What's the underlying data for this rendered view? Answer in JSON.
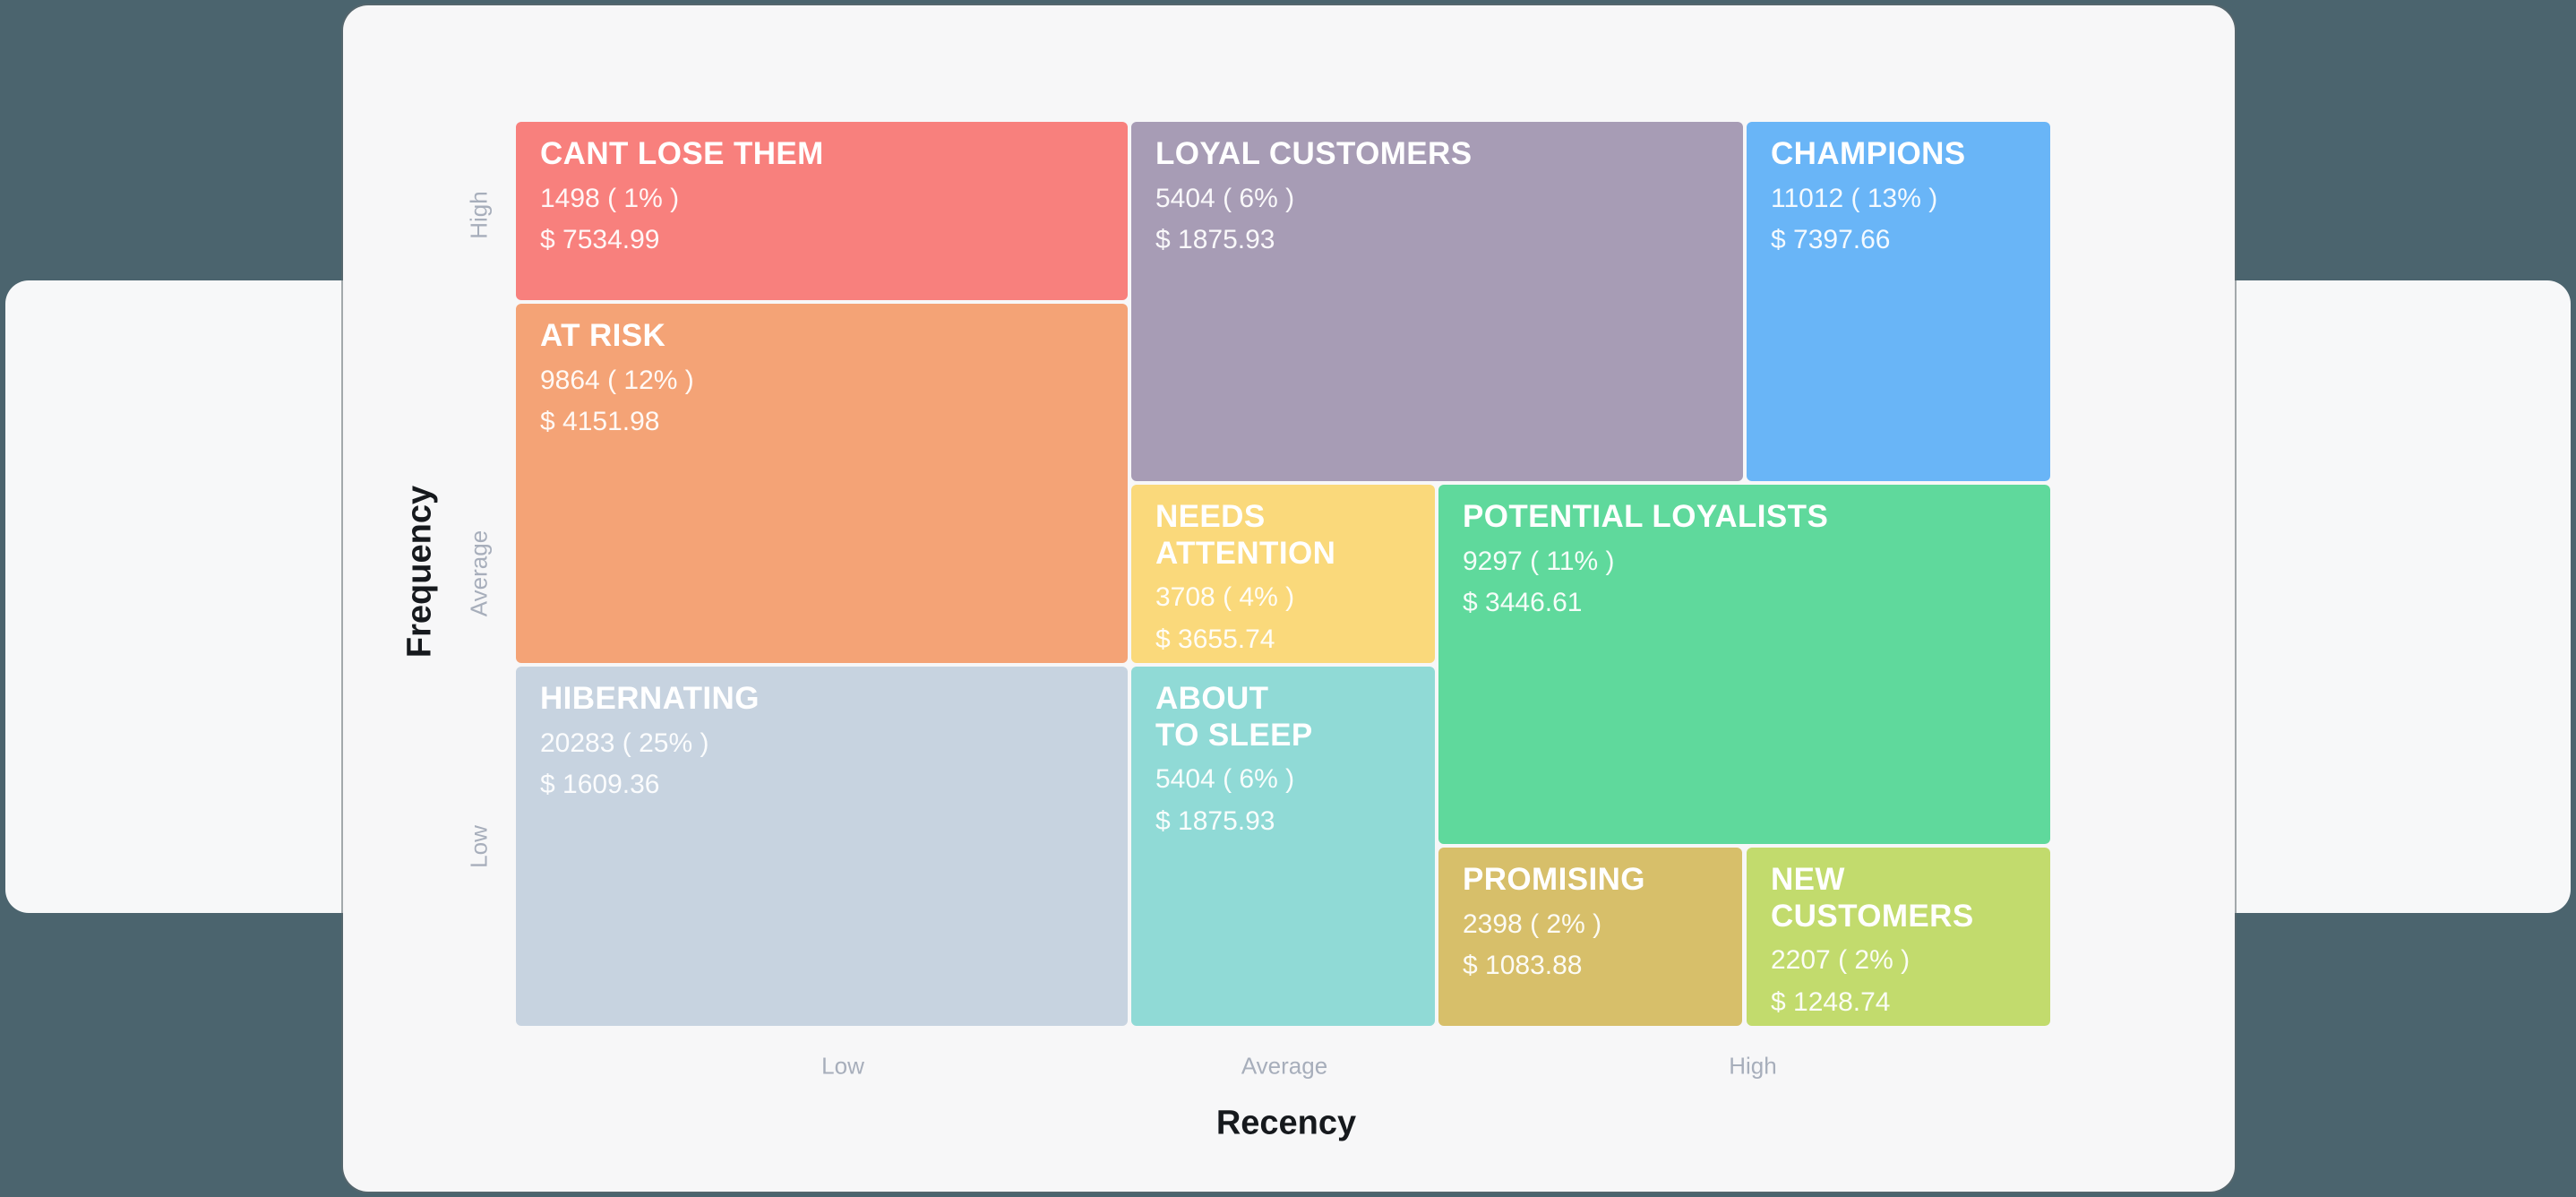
{
  "theme": {
    "page_bg": "#4b646e",
    "card_bg": "#f7f7f8",
    "axis_title_color": "#16191d",
    "tick_label_color": "#a7aebb",
    "segment_text_color": "#ffffff"
  },
  "chart_data": {
    "type": "treemap",
    "subtype": "rfm-segment-grid",
    "xlabel": "Recency",
    "ylabel": "Frequency",
    "x_ticks": [
      "Low",
      "Average",
      "High"
    ],
    "y_ticks": [
      "High",
      "Average",
      "Low"
    ],
    "grid": {
      "column_splits_pct": [
        0,
        40,
        60,
        80,
        100
      ],
      "row_splits_pct": [
        0,
        20,
        40,
        60,
        80,
        100
      ]
    },
    "segments": [
      {
        "name": "CANT LOSE THEM",
        "display_name": "CANT LOSE THEM",
        "customers": 1498,
        "percent": 1,
        "monetary": 7534.99,
        "count_label": "1498 ( 1% )",
        "monetary_label": "$ 7534.99",
        "color": "#f8807d",
        "col_span_pct": [
          0,
          40
        ],
        "row_span_pct": [
          0,
          20
        ]
      },
      {
        "name": "LOYAL CUSTOMERS",
        "display_name": "LOYAL CUSTOMERS",
        "customers": 5404,
        "percent": 6,
        "monetary": 1875.93,
        "count_label": "5404 ( 6% )",
        "monetary_label": "$ 1875.93",
        "color": "#a79cb5",
        "col_span_pct": [
          40,
          80
        ],
        "row_span_pct": [
          0,
          40
        ]
      },
      {
        "name": "CHAMPIONS",
        "display_name": "CHAMPIONS",
        "customers": 11012,
        "percent": 13,
        "monetary": 7397.66,
        "count_label": "11012 ( 13% )",
        "monetary_label": "$ 7397.66",
        "color": "#69b5f7",
        "col_span_pct": [
          80,
          100
        ],
        "row_span_pct": [
          0,
          40
        ]
      },
      {
        "name": "AT RISK",
        "display_name": "AT RISK",
        "customers": 9864,
        "percent": 12,
        "monetary": 4151.98,
        "count_label": "9864 ( 12% )",
        "monetary_label": "$ 4151.98",
        "color": "#f4a376",
        "col_span_pct": [
          0,
          40
        ],
        "row_span_pct": [
          20,
          60
        ]
      },
      {
        "name": "NEEDS ATTENTION",
        "display_name": "NEEDS\nATTENTION",
        "customers": 3708,
        "percent": 4,
        "monetary": 3655.74,
        "count_label": "3708 ( 4% )",
        "monetary_label": "$ 3655.74",
        "color": "#fad97b",
        "col_span_pct": [
          40,
          60
        ],
        "row_span_pct": [
          40,
          60
        ]
      },
      {
        "name": "POTENTIAL LOYALISTS",
        "display_name": "POTENTIAL LOYALISTS",
        "customers": 9297,
        "percent": 11,
        "monetary": 3446.61,
        "count_label": "9297 ( 11% )",
        "monetary_label": "$ 3446.61",
        "color": "#5fd99c",
        "col_span_pct": [
          60,
          100
        ],
        "row_span_pct": [
          40,
          80
        ]
      },
      {
        "name": "HIBERNATING",
        "display_name": "HIBERNATING",
        "customers": 20283,
        "percent": 25,
        "monetary": 1609.36,
        "count_label": "20283 ( 25% )",
        "monetary_label": "$ 1609.36",
        "color": "#c7d3e0",
        "col_span_pct": [
          0,
          40
        ],
        "row_span_pct": [
          60,
          100
        ]
      },
      {
        "name": "ABOUT TO SLEEP",
        "display_name": "ABOUT\nTO SLEEP",
        "customers": 5404,
        "percent": 6,
        "monetary": 1875.93,
        "count_label": "5404 ( 6% )",
        "monetary_label": "$ 1875.93",
        "color": "#90dad6",
        "col_span_pct": [
          40,
          60
        ],
        "row_span_pct": [
          60,
          100
        ]
      },
      {
        "name": "PROMISING",
        "display_name": "PROMISING",
        "customers": 2398,
        "percent": 2,
        "monetary": 1083.88,
        "count_label": "2398 ( 2% )",
        "monetary_label": "$ 1083.88",
        "color": "#d7bf6a",
        "col_span_pct": [
          60,
          80
        ],
        "row_span_pct": [
          80,
          100
        ]
      },
      {
        "name": "NEW CUSTOMERS",
        "display_name": "NEW\nCUSTOMERS",
        "customers": 2207,
        "percent": 2,
        "monetary": 1248.74,
        "count_label": "2207 ( 2% )",
        "monetary_label": "$ 1248.74",
        "color": "#c2db6d",
        "col_span_pct": [
          80,
          100
        ],
        "row_span_pct": [
          80,
          100
        ]
      }
    ],
    "axis": {
      "x_title": "Recency",
      "y_title": "Frequency",
      "x_tick_low": "Low",
      "x_tick_average": "Average",
      "x_tick_high": "High",
      "y_tick_high": "High",
      "y_tick_average": "Average",
      "y_tick_low": "Low"
    }
  }
}
